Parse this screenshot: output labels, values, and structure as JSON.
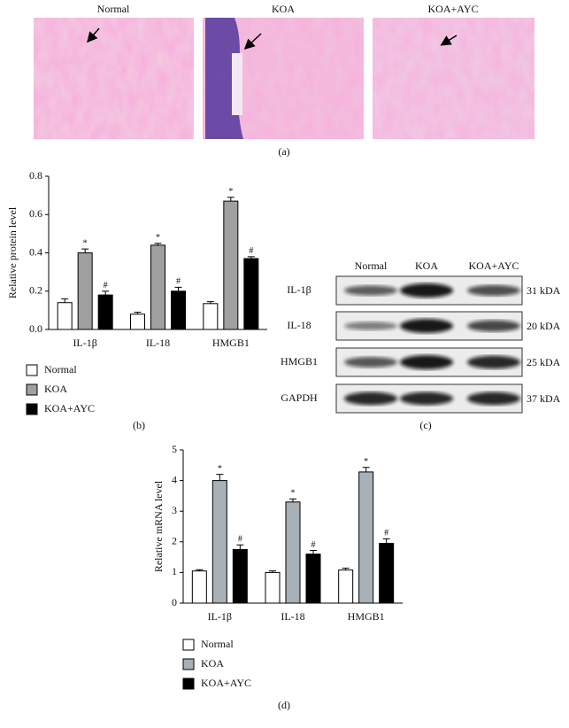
{
  "histology": {
    "panels": [
      {
        "label": "Normal"
      },
      {
        "label": "KOA"
      },
      {
        "label": "KOA+AYC"
      }
    ],
    "caption": "(a)"
  },
  "blot": {
    "lanes": [
      "Normal",
      "KOA",
      "KOA+AYC"
    ],
    "rows": [
      {
        "label": "IL-1β",
        "size": "31 kDA"
      },
      {
        "label": "IL-18",
        "size": "20 kDA"
      },
      {
        "label": "HMGB1",
        "size": "25 kDA"
      },
      {
        "label": "GAPDH",
        "size": "37 kDA"
      }
    ],
    "caption": "(c)"
  },
  "chart_data": [
    {
      "type": "bar",
      "caption": "(b)",
      "y_label": "Relative protein level",
      "categories": [
        "IL-1β",
        "IL-18",
        "HMGB1"
      ],
      "series": [
        {
          "name": "Normal",
          "color": "#ffffff",
          "values": [
            0.14,
            0.08,
            0.135
          ],
          "errors": [
            0.02,
            0.01,
            0.01
          ]
        },
        {
          "name": "KOA",
          "color": "#a0a0a0",
          "values": [
            0.4,
            0.44,
            0.67
          ],
          "errors": [
            0.02,
            0.01,
            0.02
          ],
          "markers": [
            "*",
            "*",
            "*"
          ]
        },
        {
          "name": "KOA+AYC",
          "color": "#000000",
          "values": [
            0.18,
            0.2,
            0.37
          ],
          "errors": [
            0.02,
            0.02,
            0.01
          ],
          "markers": [
            "#",
            "#",
            "#"
          ]
        }
      ],
      "ylim": [
        0,
        0.8
      ],
      "yticks": [
        {
          "value": 0,
          "label": "0.0"
        },
        0.2,
        0.4,
        0.6,
        0.8
      ],
      "legend": "below"
    },
    {
      "type": "bar",
      "caption": "(d)",
      "y_label": "Relative mRNA level",
      "categories": [
        "IL-1β",
        "IL-18",
        "HMGB1"
      ],
      "series": [
        {
          "name": "Normal",
          "color": "#ffffff",
          "values": [
            1.05,
            1.0,
            1.08
          ],
          "errors": [
            0.04,
            0.05,
            0.06
          ]
        },
        {
          "name": "KOA",
          "color": "#a8b0b8",
          "values": [
            4.0,
            3.3,
            4.28
          ],
          "errors": [
            0.2,
            0.1,
            0.15
          ],
          "markers": [
            "*",
            "*",
            "*"
          ]
        },
        {
          "name": "KOA+AYC",
          "color": "#000000",
          "values": [
            1.75,
            1.6,
            1.95
          ],
          "errors": [
            0.15,
            0.12,
            0.15
          ],
          "markers": [
            "#",
            "#",
            "#"
          ]
        }
      ],
      "ylim": [
        0,
        5
      ],
      "yticks": [
        0,
        1,
        2,
        3,
        4,
        5
      ],
      "legend": "below"
    }
  ]
}
